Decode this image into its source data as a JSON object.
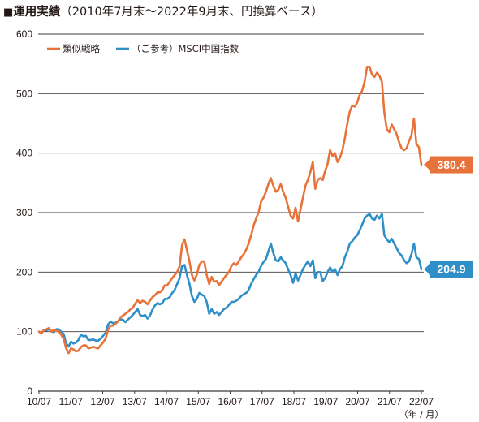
{
  "header": {
    "mark": "■",
    "title": "運用実績",
    "subtitle": "（2010年7月末〜2022年9月末、円換算ベース）"
  },
  "chart_data": {
    "type": "line",
    "title": "運用実績",
    "xlabel": "",
    "ylabel": "",
    "x_unit_label": "（年 / 月）",
    "ylim": [
      0,
      600
    ],
    "yticks": [
      0,
      100,
      200,
      300,
      400,
      500,
      600
    ],
    "xticks": [
      "10/07",
      "11/07",
      "12/07",
      "13/07",
      "14/07",
      "15/07",
      "16/07",
      "17/07",
      "18/07",
      "19/07",
      "20/07",
      "21/07",
      "22/07"
    ],
    "grid": "horizontal",
    "legend_position": "top-left",
    "x_start": "2010-07",
    "x_end": "2022-09",
    "series": [
      {
        "name": "類似戦略",
        "color": "#e8733a",
        "end_label": "380.4",
        "values": [
          100,
          97,
          103,
          104,
          106,
          100,
          103,
          101,
          101,
          95,
          88,
          72,
          64,
          72,
          70,
          67,
          68,
          74,
          77,
          77,
          72,
          73,
          75,
          73,
          72,
          77,
          82,
          88,
          103,
          110,
          110,
          113,
          117,
          124,
          127,
          130,
          133,
          137,
          140,
          147,
          153,
          148,
          152,
          150,
          146,
          152,
          158,
          161,
          166,
          166,
          170,
          178,
          178,
          184,
          190,
          195,
          200,
          210,
          245,
          255,
          237,
          218,
          195,
          186,
          196,
          212,
          218,
          218,
          195,
          180,
          192,
          184,
          185,
          178,
          184,
          190,
          195,
          200,
          210,
          215,
          212,
          218,
          225,
          230,
          238,
          248,
          262,
          278,
          290,
          300,
          318,
          325,
          335,
          348,
          358,
          345,
          335,
          338,
          348,
          335,
          325,
          310,
          295,
          290,
          308,
          285,
          305,
          325,
          345,
          355,
          368,
          385,
          340,
          355,
          358,
          355,
          370,
          382,
          405,
          395,
          400,
          385,
          392,
          405,
          425,
          450,
          470,
          480,
          478,
          485,
          498,
          505,
          520,
          545,
          545,
          532,
          528,
          535,
          530,
          520,
          468,
          440,
          435,
          448,
          440,
          432,
          418,
          408,
          405,
          408,
          420,
          430,
          458,
          415,
          410,
          380.4
        ]
      },
      {
        "name": "（ご参考）MSCI中国指数",
        "color": "#2f8fc8",
        "end_label": "204.9",
        "values": [
          100,
          97,
          103,
          102,
          104,
          101,
          99,
          104,
          104,
          100,
          96,
          80,
          75,
          83,
          80,
          82,
          86,
          95,
          92,
          93,
          86,
          86,
          87,
          85,
          85,
          88,
          93,
          98,
          112,
          117,
          114,
          115,
          117,
          121,
          120,
          116,
          120,
          124,
          128,
          133,
          138,
          128,
          126,
          128,
          122,
          127,
          137,
          144,
          148,
          146,
          148,
          155,
          155,
          158,
          165,
          170,
          180,
          190,
          210,
          212,
          195,
          180,
          160,
          150,
          155,
          165,
          162,
          160,
          150,
          130,
          138,
          130,
          133,
          128,
          133,
          138,
          140,
          145,
          150,
          150,
          152,
          155,
          160,
          163,
          165,
          170,
          180,
          188,
          195,
          200,
          210,
          217,
          222,
          235,
          248,
          232,
          220,
          218,
          225,
          220,
          215,
          205,
          195,
          182,
          198,
          186,
          195,
          205,
          212,
          218,
          210,
          220,
          190,
          200,
          200,
          185,
          190,
          200,
          208,
          200,
          205,
          195,
          205,
          210,
          225,
          235,
          248,
          252,
          258,
          262,
          270,
          280,
          290,
          295,
          298,
          290,
          288,
          295,
          290,
          298,
          262,
          255,
          250,
          256,
          248,
          240,
          232,
          228,
          220,
          215,
          218,
          230,
          248,
          225,
          222,
          204.9
        ]
      }
    ]
  }
}
